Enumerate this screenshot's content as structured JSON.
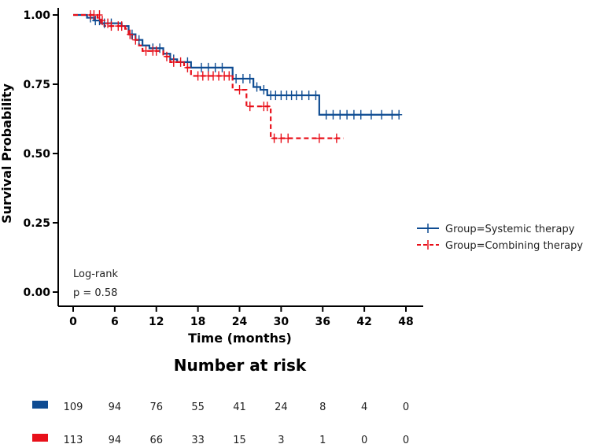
{
  "chart_data": {
    "type": "line",
    "subtype": "kaplan-meier",
    "xlabel": "Time (months)",
    "ylabel": "Survival Probability",
    "xlim": [
      0,
      48
    ],
    "ylim": [
      0,
      1
    ],
    "x_ticks": [
      "0",
      "6",
      "12",
      "18",
      "24",
      "30",
      "36",
      "42",
      "48"
    ],
    "y_ticks": [
      "0.00",
      "0.25",
      "0.50",
      "0.75",
      "1.00"
    ],
    "legend_position": "right",
    "annotation": {
      "test": "Log-rank",
      "p_value": "p = 0.58"
    },
    "series": [
      {
        "name": "Group=Systemic therapy",
        "color": "#0f4c92",
        "line_style": "solid",
        "steps": [
          [
            0,
            1.0
          ],
          [
            2,
            0.99
          ],
          [
            3,
            0.98
          ],
          [
            4,
            0.97
          ],
          [
            7,
            0.96
          ],
          [
            8,
            0.93
          ],
          [
            9,
            0.91
          ],
          [
            10,
            0.89
          ],
          [
            11,
            0.88
          ],
          [
            13,
            0.86
          ],
          [
            14,
            0.84
          ],
          [
            15,
            0.83
          ],
          [
            17,
            0.81
          ],
          [
            23,
            0.77
          ],
          [
            26,
            0.74
          ],
          [
            27,
            0.73
          ],
          [
            28,
            0.71
          ],
          [
            35.5,
            0.64
          ],
          [
            47,
            0.64
          ]
        ],
        "censored": [
          [
            2.5,
            0.99
          ],
          [
            3.2,
            0.98
          ],
          [
            3.8,
            0.98
          ],
          [
            4.5,
            0.97
          ],
          [
            5.5,
            0.97
          ],
          [
            8.5,
            0.93
          ],
          [
            9.5,
            0.91
          ],
          [
            11.5,
            0.88
          ],
          [
            12.5,
            0.88
          ],
          [
            14.5,
            0.84
          ],
          [
            16.5,
            0.83
          ],
          [
            18.5,
            0.81
          ],
          [
            19.5,
            0.81
          ],
          [
            20.5,
            0.81
          ],
          [
            21.5,
            0.81
          ],
          [
            23.5,
            0.77
          ],
          [
            24.5,
            0.77
          ],
          [
            25.5,
            0.77
          ],
          [
            26.5,
            0.74
          ],
          [
            27.5,
            0.73
          ],
          [
            28.5,
            0.71
          ],
          [
            29.2,
            0.71
          ],
          [
            30,
            0.71
          ],
          [
            30.8,
            0.71
          ],
          [
            31.5,
            0.71
          ],
          [
            32.2,
            0.71
          ],
          [
            33,
            0.71
          ],
          [
            34,
            0.71
          ],
          [
            35,
            0.71
          ],
          [
            36.5,
            0.64
          ],
          [
            37.5,
            0.64
          ],
          [
            38.5,
            0.64
          ],
          [
            39.5,
            0.64
          ],
          [
            40.5,
            0.64
          ],
          [
            41.5,
            0.64
          ],
          [
            43,
            0.64
          ],
          [
            44.5,
            0.64
          ],
          [
            46,
            0.64
          ],
          [
            47,
            0.64
          ]
        ]
      },
      {
        "name": "Group=Combining therapy",
        "color": "#e8101a",
        "line_style": "dashed",
        "steps": [
          [
            0,
            1.0
          ],
          [
            3.5,
            0.99
          ],
          [
            4,
            0.97
          ],
          [
            4.5,
            0.96
          ],
          [
            7.5,
            0.95
          ],
          [
            8,
            0.93
          ],
          [
            8.5,
            0.91
          ],
          [
            9.5,
            0.89
          ],
          [
            10,
            0.87
          ],
          [
            13,
            0.85
          ],
          [
            14,
            0.83
          ],
          [
            16,
            0.81
          ],
          [
            17,
            0.78
          ],
          [
            23,
            0.73
          ],
          [
            25,
            0.67
          ],
          [
            28.5,
            0.555
          ],
          [
            39,
            0.555
          ]
        ],
        "censored": [
          [
            2.5,
            1.0
          ],
          [
            3,
            1.0
          ],
          [
            3.8,
            1.0
          ],
          [
            4.2,
            0.98
          ],
          [
            5,
            0.97
          ],
          [
            5.5,
            0.96
          ],
          [
            6.5,
            0.96
          ],
          [
            7,
            0.96
          ],
          [
            8.2,
            0.93
          ],
          [
            9,
            0.91
          ],
          [
            10.5,
            0.87
          ],
          [
            11.5,
            0.87
          ],
          [
            12,
            0.87
          ],
          [
            13.5,
            0.85
          ],
          [
            14.5,
            0.83
          ],
          [
            15.5,
            0.83
          ],
          [
            16.5,
            0.81
          ],
          [
            18,
            0.78
          ],
          [
            18.7,
            0.78
          ],
          [
            19.5,
            0.78
          ],
          [
            20.2,
            0.78
          ],
          [
            21,
            0.78
          ],
          [
            21.8,
            0.78
          ],
          [
            22.5,
            0.78
          ],
          [
            24,
            0.73
          ],
          [
            25.5,
            0.67
          ],
          [
            27.5,
            0.67
          ],
          [
            28,
            0.67
          ],
          [
            29,
            0.555
          ],
          [
            30,
            0.555
          ],
          [
            31,
            0.555
          ],
          [
            35.5,
            0.555
          ],
          [
            38,
            0.555
          ]
        ]
      }
    ]
  },
  "risk_table": {
    "title": "Number at risk",
    "rows": [
      {
        "color": "#0f4c92",
        "values": [
          "109",
          "94",
          "76",
          "55",
          "41",
          "24",
          "8",
          "4",
          "0"
        ]
      },
      {
        "color": "#e8101a",
        "values": [
          "113",
          "94",
          "66",
          "33",
          "15",
          "3",
          "1",
          "0",
          "0"
        ]
      }
    ]
  }
}
